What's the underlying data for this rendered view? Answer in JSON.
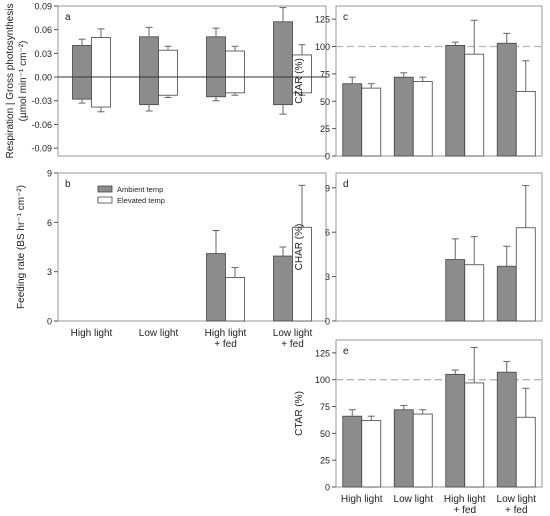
{
  "colors": {
    "ambient": "#8c8c8c",
    "elevated": "#ffffff",
    "edge": "#444444",
    "frame": "#9a9a9a",
    "dash": "#b5b5b5"
  },
  "legend": {
    "ambient": "Ambient temp",
    "elevated": "Elevated temp"
  },
  "chart_data": [
    {
      "panel": "a",
      "type": "bar",
      "ylabel_line1": "Respiration | Gross photosynthesis",
      "ylabel_line2": "(µmol min⁻¹ cm⁻²)",
      "ylim": [
        -0.1,
        0.09
      ],
      "yticks": [
        "0.09",
        "0.06",
        "0.03",
        "0.00",
        "-0.03",
        "-0.06",
        "-0.09"
      ],
      "ytick_values": [
        0.09,
        0.06,
        0.03,
        0.0,
        -0.03,
        -0.06,
        -0.09
      ],
      "zero_line": true,
      "series": [
        {
          "name": "Ambient temp",
          "stacked_signed": true,
          "positive": [
            0.04,
            0.051,
            0.051,
            0.07
          ],
          "positive_err": [
            0.008,
            0.012,
            0.011,
            0.018
          ],
          "negative": [
            -0.028,
            -0.035,
            -0.025,
            -0.035
          ],
          "negative_err": [
            0.005,
            0.008,
            0.005,
            0.012
          ]
        },
        {
          "name": "Elevated temp",
          "stacked_signed": true,
          "positive": [
            0.05,
            0.034,
            0.033,
            0.028
          ],
          "positive_err": [
            0.011,
            0.005,
            0.006,
            0.013
          ],
          "negative": [
            -0.038,
            -0.023,
            -0.02,
            -0.02
          ],
          "negative_err": [
            0.006,
            0.003,
            0.003,
            0.003
          ]
        }
      ]
    },
    {
      "panel": "b",
      "type": "bar",
      "ylabel": "Feeding rate (BS hr⁻¹ cm⁻²)",
      "ylim": [
        0,
        9
      ],
      "yticks": [
        "9",
        "6",
        "3",
        "0"
      ],
      "ytick_values": [
        9,
        6,
        3,
        0
      ],
      "categories": [
        "High light",
        "Low light",
        "High light\n+ fed",
        "Low light\n+ fed"
      ],
      "series": [
        {
          "name": "Ambient temp",
          "values": [
            null,
            null,
            4.1,
            3.95
          ],
          "errors": [
            null,
            null,
            1.4,
            0.55
          ]
        },
        {
          "name": "Elevated temp",
          "values": [
            null,
            null,
            2.65,
            5.7
          ],
          "errors": [
            null,
            null,
            0.6,
            2.55
          ]
        }
      ],
      "legend_position": "top-left"
    },
    {
      "panel": "c",
      "type": "bar",
      "ylabel": "CZAR (%)",
      "ylim": [
        0,
        137
      ],
      "yticks": [
        "125",
        "100",
        "75",
        "50",
        "25",
        "0"
      ],
      "ytick_values": [
        125,
        100,
        75,
        50,
        25,
        0
      ],
      "reference_line": 100,
      "series": [
        {
          "name": "Ambient temp",
          "values": [
            66,
            72,
            101,
            103
          ],
          "errors": [
            6,
            4,
            3,
            9
          ]
        },
        {
          "name": "Elevated temp",
          "values": [
            62,
            68,
            93,
            59
          ],
          "errors": [
            4,
            4,
            31,
            28
          ]
        }
      ]
    },
    {
      "panel": "d",
      "type": "bar",
      "ylabel": "CHAR (%)",
      "ylim": [
        0,
        10
      ],
      "yticks": [
        "9",
        "6",
        "3",
        "0"
      ],
      "ytick_values": [
        9,
        6,
        3,
        0
      ],
      "series": [
        {
          "name": "Ambient temp",
          "values": [
            null,
            null,
            4.15,
            3.7
          ],
          "errors": [
            null,
            null,
            1.4,
            1.35
          ]
        },
        {
          "name": "Elevated temp",
          "values": [
            null,
            null,
            3.8,
            6.3
          ],
          "errors": [
            null,
            null,
            1.9,
            2.85
          ]
        }
      ]
    },
    {
      "panel": "e",
      "type": "bar",
      "ylabel": "CTAR (%)",
      "ylim": [
        0,
        137
      ],
      "yticks": [
        "125",
        "100",
        "75",
        "50",
        "25",
        "0"
      ],
      "ytick_values": [
        125,
        100,
        75,
        50,
        25,
        0
      ],
      "reference_line": 100,
      "categories": [
        "High light",
        "Low light",
        "High light\n+ fed",
        "Low light\n+ fed"
      ],
      "series": [
        {
          "name": "Ambient temp",
          "values": [
            66,
            72,
            105,
            107
          ],
          "errors": [
            6,
            4,
            4,
            10
          ]
        },
        {
          "name": "Elevated temp",
          "values": [
            62,
            68,
            97,
            65
          ],
          "errors": [
            4,
            4,
            33,
            27
          ]
        }
      ]
    }
  ]
}
